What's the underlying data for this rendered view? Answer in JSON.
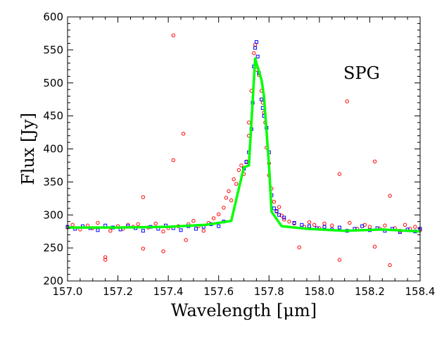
{
  "chart_data": {
    "type": "scatter",
    "title": "",
    "annotation": "SPG",
    "xlabel": "Wavelength [μm]",
    "ylabel": "Flux [Jy]",
    "xlim": [
      157.0,
      158.4
    ],
    "ylim": [
      200,
      600
    ],
    "x_ticks": [
      157.0,
      157.2,
      157.4,
      157.6,
      157.8,
      158.0,
      158.2,
      158.4
    ],
    "x_tick_labels": [
      "157.0",
      "157.2",
      "157.4",
      "157.6",
      "157.8",
      "158.0",
      "158.2",
      "158.4"
    ],
    "y_ticks": [
      200,
      250,
      300,
      350,
      400,
      450,
      500,
      550,
      600
    ],
    "y_tick_labels": [
      "200",
      "250",
      "300",
      "350",
      "400",
      "450",
      "500",
      "550",
      "600"
    ],
    "grid": false,
    "colors": {
      "scatter_a": "#ff0000",
      "scatter_b": "#0000ff",
      "fit": "#00ff00"
    },
    "series": [
      {
        "style": "open-circle",
        "color": "#ff0000",
        "points": [
          [
            157.0,
            281
          ],
          [
            157.02,
            285
          ],
          [
            157.05,
            278
          ],
          [
            157.08,
            284
          ],
          [
            157.1,
            280
          ],
          [
            157.12,
            288
          ],
          [
            157.15,
            232
          ],
          [
            157.15,
            236
          ],
          [
            157.17,
            276
          ],
          [
            157.2,
            283
          ],
          [
            157.22,
            279
          ],
          [
            157.24,
            285
          ],
          [
            157.26,
            282
          ],
          [
            157.28,
            286
          ],
          [
            157.3,
            327
          ],
          [
            157.3,
            249
          ],
          [
            157.32,
            281
          ],
          [
            157.35,
            287
          ],
          [
            157.38,
            245
          ],
          [
            157.38,
            275
          ],
          [
            157.4,
            280
          ],
          [
            157.42,
            572
          ],
          [
            157.42,
            383
          ],
          [
            157.44,
            283
          ],
          [
            157.46,
            423
          ],
          [
            157.47,
            262
          ],
          [
            157.48,
            286
          ],
          [
            157.5,
            291
          ],
          [
            157.52,
            283
          ],
          [
            157.54,
            276
          ],
          [
            157.56,
            288
          ],
          [
            157.58,
            295
          ],
          [
            157.6,
            301
          ],
          [
            157.62,
            311
          ],
          [
            157.63,
            326
          ],
          [
            157.64,
            336
          ],
          [
            157.65,
            322
          ],
          [
            157.66,
            354
          ],
          [
            157.67,
            347
          ],
          [
            157.68,
            368
          ],
          [
            157.69,
            375
          ],
          [
            157.7,
            362
          ],
          [
            157.71,
            381
          ],
          [
            157.72,
            420
          ],
          [
            157.72,
            440
          ],
          [
            157.73,
            488
          ],
          [
            157.74,
            545
          ],
          [
            157.745,
            558
          ],
          [
            157.75,
            520
          ],
          [
            157.76,
            512
          ],
          [
            157.77,
            488
          ],
          [
            157.775,
            470
          ],
          [
            157.78,
            455
          ],
          [
            157.785,
            440
          ],
          [
            157.79,
            402
          ],
          [
            157.8,
            378
          ],
          [
            157.8,
            360
          ],
          [
            157.81,
            340
          ],
          [
            157.82,
            320
          ],
          [
            157.83,
            305
          ],
          [
            157.84,
            312
          ],
          [
            157.85,
            299
          ],
          [
            157.86,
            293
          ],
          [
            157.88,
            290
          ],
          [
            157.9,
            287
          ],
          [
            157.92,
            251
          ],
          [
            157.94,
            282
          ],
          [
            157.96,
            289
          ],
          [
            157.98,
            285
          ],
          [
            158.0,
            280
          ],
          [
            158.02,
            287
          ],
          [
            158.05,
            284
          ],
          [
            158.08,
            362
          ],
          [
            158.08,
            232
          ],
          [
            158.11,
            472
          ],
          [
            158.12,
            288
          ],
          [
            158.15,
            279
          ],
          [
            158.18,
            285
          ],
          [
            158.2,
            282
          ],
          [
            158.22,
            381
          ],
          [
            158.22,
            252
          ],
          [
            158.24,
            279
          ],
          [
            158.26,
            284
          ],
          [
            158.28,
            224
          ],
          [
            158.28,
            329
          ],
          [
            158.3,
            280
          ],
          [
            158.32,
            276
          ],
          [
            158.34,
            285
          ],
          [
            158.36,
            279
          ],
          [
            158.38,
            282
          ],
          [
            158.4,
            277
          ]
        ]
      },
      {
        "style": "open-square",
        "color": "#0000ff",
        "points": [
          [
            157.0,
            282
          ],
          [
            157.03,
            279
          ],
          [
            157.06,
            283
          ],
          [
            157.09,
            280
          ],
          [
            157.12,
            277
          ],
          [
            157.15,
            284
          ],
          [
            157.18,
            281
          ],
          [
            157.21,
            278
          ],
          [
            157.24,
            283
          ],
          [
            157.27,
            280
          ],
          [
            157.3,
            276
          ],
          [
            157.33,
            282
          ],
          [
            157.36,
            279
          ],
          [
            157.39,
            284
          ],
          [
            157.42,
            280
          ],
          [
            157.45,
            277
          ],
          [
            157.48,
            283
          ],
          [
            157.51,
            279
          ],
          [
            157.54,
            282
          ],
          [
            157.57,
            286
          ],
          [
            157.6,
            283
          ],
          [
            157.62,
            290
          ],
          [
            157.7,
            370
          ],
          [
            157.71,
            380
          ],
          [
            157.72,
            395
          ],
          [
            157.73,
            430
          ],
          [
            157.735,
            470
          ],
          [
            157.74,
            525
          ],
          [
            157.745,
            553
          ],
          [
            157.75,
            562
          ],
          [
            157.755,
            540
          ],
          [
            157.76,
            515
          ],
          [
            157.77,
            475
          ],
          [
            157.775,
            462
          ],
          [
            157.78,
            450
          ],
          [
            157.79,
            432
          ],
          [
            157.8,
            395
          ],
          [
            157.81,
            330
          ],
          [
            157.82,
            310
          ],
          [
            157.83,
            306
          ],
          [
            157.84,
            300
          ],
          [
            157.86,
            296
          ],
          [
            157.9,
            288
          ],
          [
            157.93,
            285
          ],
          [
            157.96,
            283
          ],
          [
            157.99,
            280
          ],
          [
            158.02,
            282
          ],
          [
            158.05,
            278
          ],
          [
            158.08,
            281
          ],
          [
            158.11,
            276
          ],
          [
            158.14,
            279
          ],
          [
            158.17,
            283
          ],
          [
            158.2,
            277
          ],
          [
            158.23,
            280
          ],
          [
            158.26,
            276
          ],
          [
            158.29,
            279
          ],
          [
            158.32,
            274
          ],
          [
            158.35,
            278
          ],
          [
            158.38,
            275
          ],
          [
            158.4,
            279
          ]
        ]
      },
      {
        "style": "line",
        "color": "#00ff00",
        "points": [
          [
            157.0,
            281
          ],
          [
            157.2,
            281
          ],
          [
            157.4,
            282
          ],
          [
            157.55,
            285
          ],
          [
            157.65,
            291
          ],
          [
            157.7,
            372
          ],
          [
            157.72,
            375
          ],
          [
            157.745,
            537
          ],
          [
            157.75,
            530
          ],
          [
            157.77,
            505
          ],
          [
            157.78,
            480
          ],
          [
            157.8,
            375
          ],
          [
            157.81,
            305
          ],
          [
            157.85,
            283
          ],
          [
            157.95,
            279
          ],
          [
            158.1,
            276
          ],
          [
            158.25,
            278
          ],
          [
            158.4,
            275
          ]
        ]
      }
    ]
  }
}
